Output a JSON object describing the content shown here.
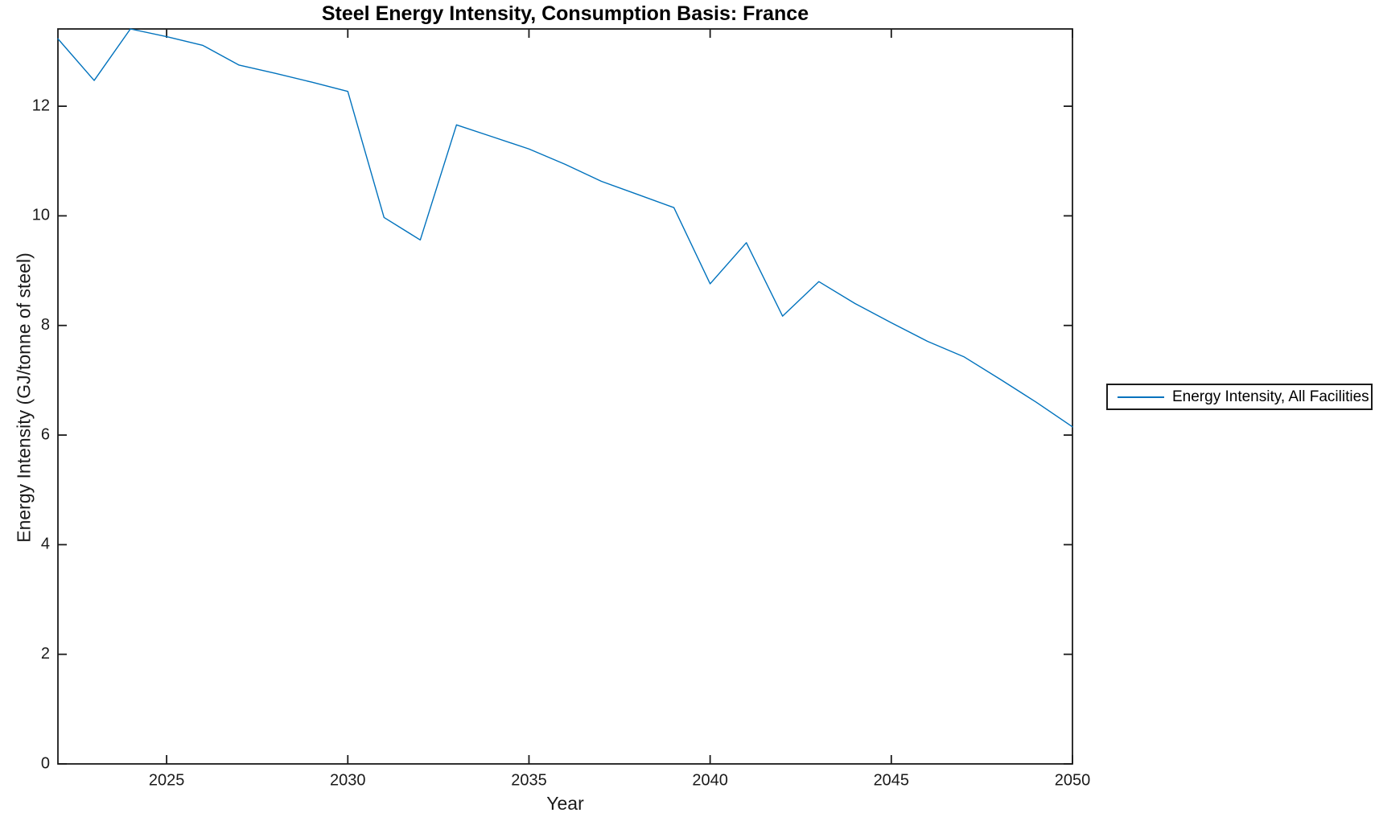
{
  "chart_data": {
    "type": "line",
    "title": "Steel Energy Intensity, Consumption Basis: France",
    "xlabel": "Year",
    "ylabel": "Energy Intensity (GJ/tonne of steel)",
    "x": [
      2022,
      2023,
      2024,
      2025,
      2026,
      2027,
      2028,
      2029,
      2030,
      2031,
      2032,
      2033,
      2034,
      2035,
      2036,
      2037,
      2038,
      2039,
      2040,
      2041,
      2042,
      2043,
      2044,
      2045,
      2046,
      2047,
      2048,
      2049,
      2050
    ],
    "series": [
      {
        "name": "Energy Intensity, All Facilities",
        "color": "#0072BD",
        "values": [
          13.23,
          12.47,
          13.41,
          13.27,
          13.11,
          12.75,
          12.6,
          12.44,
          12.27,
          9.97,
          9.56,
          11.66,
          11.44,
          11.22,
          10.94,
          10.63,
          10.39,
          10.15,
          8.76,
          9.51,
          8.17,
          8.8,
          8.4,
          8.05,
          7.71,
          7.43,
          7.02,
          6.6,
          6.15
        ]
      }
    ],
    "xlim": [
      2022,
      2050
    ],
    "ylim": [
      0,
      13.41
    ],
    "xticks": [
      2025,
      2030,
      2035,
      2040,
      2045,
      2050
    ],
    "yticks": [
      0,
      2,
      4,
      6,
      8,
      10,
      12
    ],
    "grid": false,
    "legend_position": "right-outside",
    "axis_color": "#1a1a1a",
    "background_color": "#ffffff"
  }
}
